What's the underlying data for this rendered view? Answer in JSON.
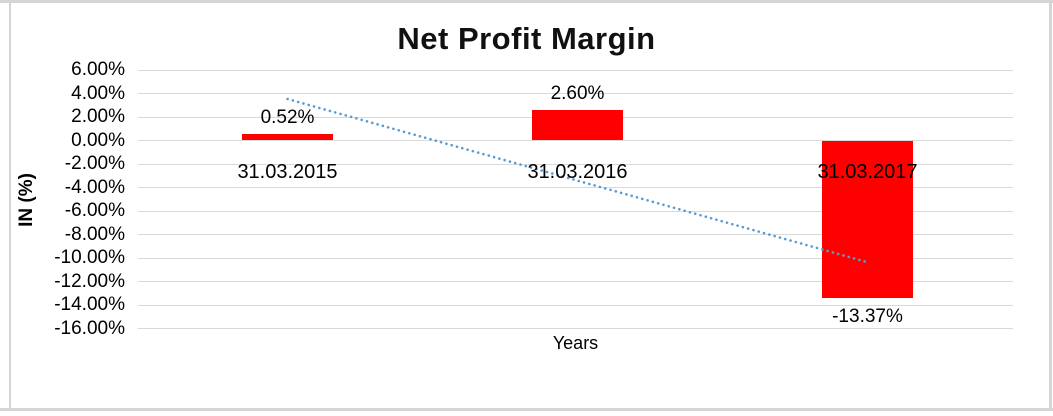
{
  "frame": {
    "border_color": "#d5d5d5"
  },
  "chart_data": {
    "type": "bar",
    "title": "Net Profit Margin",
    "xlabel": "Years",
    "ylabel": "IN (%)",
    "categories": [
      "31.03.2015",
      "31.03.2016",
      "31.03.2017"
    ],
    "values": [
      0.52,
      2.6,
      -13.37
    ],
    "value_labels": [
      "0.52%",
      "2.60%",
      "-13.37%"
    ],
    "ytick_labels": [
      "6.00%",
      "4.00%",
      "2.00%",
      "0.00%",
      "-2.00%",
      "-4.00%",
      "-6.00%",
      "-8.00%",
      "-10.00%",
      "-12.00%",
      "-14.00%",
      "-16.00%"
    ],
    "ylim": [
      -16,
      6
    ],
    "ytick_step": 2,
    "grid": true,
    "legend": "none",
    "bar_color": "#ff0000",
    "gridline_color": "#d9d9d9",
    "text_color": "#000000",
    "trendline": {
      "type": "linear",
      "style": "dotted",
      "color": "#5b9bd5",
      "start_value": 3.53,
      "end_value": -10.36
    }
  }
}
